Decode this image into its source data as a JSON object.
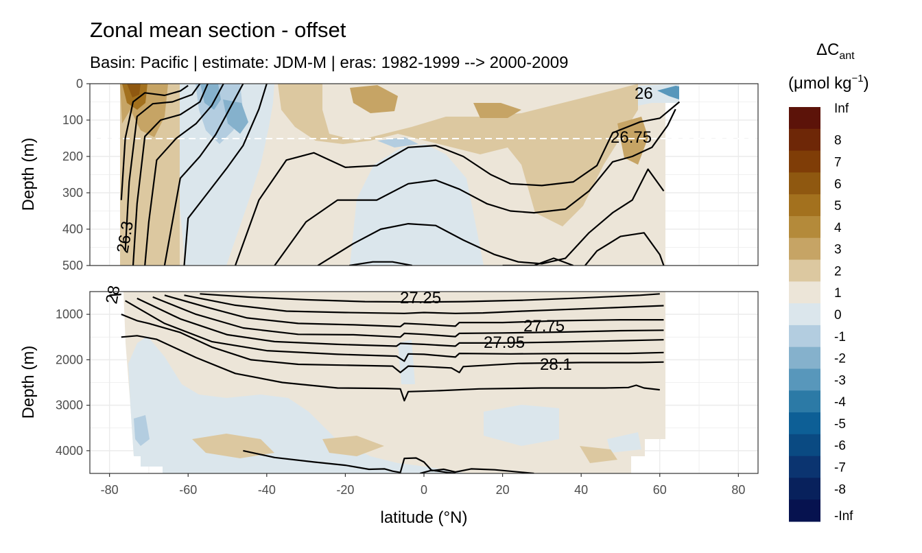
{
  "chart_data": {
    "type": "heatmap",
    "title": "Zonal mean section - offset",
    "subtitle": "Basin: Pacific | estimate: JDM-M | eras: 1982-1999 --> 2000-2009",
    "xlabel": "latitude (°N)",
    "ylabel": "Depth (m)",
    "xlim": [
      -85,
      85
    ],
    "x_ticks": [
      "-80",
      "-60",
      "-40",
      "-20",
      "0",
      "20",
      "40",
      "60",
      "80"
    ],
    "grid": true,
    "legend_position": "right",
    "panels": [
      {
        "name": "upper",
        "ylim": [
          500,
          0
        ],
        "y_ticks": [
          "0",
          "100",
          "200",
          "300",
          "400",
          "500"
        ]
      },
      {
        "name": "lower",
        "ylim": [
          4500,
          500
        ],
        "y_ticks": [
          "1000",
          "2000",
          "3000",
          "4000"
        ]
      }
    ],
    "reference_line_depth": 150,
    "legend": {
      "title_main": "ΔC",
      "title_sub": "ant",
      "unit_main": "(μmol kg",
      "unit_sup": "−1",
      "unit_close": ")",
      "bins": [
        {
          "label": "Inf",
          "color": "#5c1309"
        },
        {
          "label": "8",
          "color": "#6e2707"
        },
        {
          "label": "7",
          "color": "#7f3d07"
        },
        {
          "label": "6",
          "color": "#8f5810"
        },
        {
          "label": "5",
          "color": "#a3711e"
        },
        {
          "label": "4",
          "color": "#b48a3a"
        },
        {
          "label": "3",
          "color": "#c6a465"
        },
        {
          "label": "2",
          "color": "#dcc8a0"
        },
        {
          "label": "1",
          "color": "#ece5d8"
        },
        {
          "label": "0",
          "color": "#dbe6ec"
        },
        {
          "label": "-1",
          "color": "#b3cde0"
        },
        {
          "label": "-2",
          "color": "#85b1cc"
        },
        {
          "label": "-3",
          "color": "#5897bb"
        },
        {
          "label": "-4",
          "color": "#2c7aa6"
        },
        {
          "label": "-5",
          "color": "#0d5f96"
        },
        {
          "label": "-6",
          "color": "#0a4a82"
        },
        {
          "label": "-7",
          "color": "#0b3470"
        },
        {
          "label": "-8",
          "color": "#08215c"
        },
        {
          "label": "-Inf",
          "color": "#06124f"
        }
      ]
    },
    "isopycnal_labels": [
      "26",
      "26.75",
      "26.3",
      "27.25",
      "27.75",
      "27.95",
      "28.1",
      "28"
    ],
    "contours_upper": [
      [
        [
          -77,
          320
        ],
        [
          -76,
          150
        ],
        [
          -74,
          50
        ],
        [
          -71,
          25
        ],
        [
          -66,
          32
        ],
        [
          -62,
          20
        ],
        [
          -60,
          5
        ]
      ],
      [
        [
          -76,
          460
        ],
        [
          -75,
          270
        ],
        [
          -73,
          90
        ],
        [
          -69,
          55
        ],
        [
          -64,
          50
        ],
        [
          -59,
          30
        ],
        [
          -57,
          0
        ]
      ],
      [
        [
          -74,
          500
        ],
        [
          -73,
          330
        ],
        [
          -71,
          145
        ],
        [
          -67,
          100
        ],
        [
          -62,
          85
        ],
        [
          -57,
          50
        ],
        [
          -55,
          0
        ]
      ],
      [
        [
          -71,
          500
        ],
        [
          -70,
          380
        ],
        [
          -68,
          210
        ],
        [
          -63,
          150
        ],
        [
          -58,
          110
        ],
        [
          -54,
          60
        ],
        [
          -51,
          0
        ]
      ],
      [
        [
          -66,
          500
        ],
        [
          -65,
          440
        ],
        [
          -62,
          260
        ],
        [
          -57,
          200
        ],
        [
          -53,
          140
        ],
        [
          -49,
          60
        ],
        [
          -46,
          0
        ]
      ],
      [
        [
          -61,
          500
        ],
        [
          -60,
          370
        ],
        [
          -55,
          300
        ],
        [
          -50,
          230
        ],
        [
          -46,
          170
        ],
        [
          -42,
          70
        ],
        [
          -40,
          0
        ]
      ],
      [
        [
          -48,
          500
        ],
        [
          -42,
          320
        ],
        [
          -35,
          210
        ],
        [
          -28,
          190
        ],
        [
          -20,
          230
        ],
        [
          -12,
          225
        ],
        [
          -4,
          175
        ],
        [
          3,
          170
        ],
        [
          10,
          200
        ],
        [
          17,
          250
        ],
        [
          22,
          275
        ],
        [
          30,
          280
        ],
        [
          38,
          270
        ],
        [
          44,
          225
        ],
        [
          48,
          135
        ],
        [
          55,
          105
        ],
        [
          60,
          95
        ],
        [
          65,
          50
        ]
      ],
      [
        [
          -38,
          500
        ],
        [
          -30,
          380
        ],
        [
          -22,
          320
        ],
        [
          -12,
          320
        ],
        [
          -4,
          275
        ],
        [
          3,
          265
        ],
        [
          9,
          290
        ],
        [
          16,
          330
        ],
        [
          22,
          350
        ],
        [
          28,
          355
        ],
        [
          36,
          345
        ],
        [
          42,
          295
        ],
        [
          48,
          215
        ],
        [
          53,
          200
        ],
        [
          58,
          175
        ],
        [
          62,
          115
        ],
        [
          64,
          70
        ]
      ],
      [
        [
          -27,
          500
        ],
        [
          -18,
          440
        ],
        [
          -11,
          400
        ],
        [
          -4,
          385
        ],
        [
          3,
          390
        ],
        [
          10,
          430
        ],
        [
          18,
          470
        ],
        [
          24,
          490
        ],
        [
          30,
          495
        ],
        [
          36,
          480
        ],
        [
          42,
          410
        ],
        [
          48,
          355
        ],
        [
          53,
          320
        ],
        [
          57,
          235
        ],
        [
          61,
          295
        ]
      ],
      [
        [
          -19,
          500
        ],
        [
          -13,
          490
        ],
        [
          -8,
          490
        ],
        [
          -3,
          500
        ]
      ],
      [
        [
          20,
          500
        ],
        [
          28,
          500
        ],
        [
          33,
          480
        ],
        [
          38,
          500
        ]
      ],
      [
        [
          41,
          500
        ],
        [
          44,
          460
        ],
        [
          50,
          420
        ],
        [
          56,
          410
        ],
        [
          60,
          470
        ],
        [
          61,
          500
        ]
      ]
    ],
    "contours_lower": [
      [
        [
          -80,
          580
        ],
        [
          -78,
          570
        ],
        [
          -77,
          560
        ]
      ],
      [
        [
          -57,
          550
        ],
        [
          -45,
          620
        ],
        [
          -30,
          680
        ],
        [
          -15,
          720
        ],
        [
          0,
          730
        ],
        [
          10,
          720
        ],
        [
          25,
          690
        ],
        [
          40,
          640
        ],
        [
          55,
          580
        ],
        [
          60,
          550
        ]
      ],
      [
        [
          -61,
          580
        ],
        [
          -48,
          800
        ],
        [
          -35,
          930
        ],
        [
          -20,
          960
        ],
        [
          -5,
          980
        ],
        [
          0,
          960
        ],
        [
          8,
          980
        ],
        [
          15,
          970
        ],
        [
          25,
          930
        ],
        [
          40,
          880
        ],
        [
          55,
          830
        ],
        [
          61,
          810
        ]
      ],
      [
        [
          -66,
          580
        ],
        [
          -55,
          850
        ],
        [
          -45,
          1080
        ],
        [
          -32,
          1200
        ],
        [
          -18,
          1230
        ],
        [
          -6,
          1270
        ],
        [
          -5,
          1200
        ],
        [
          0,
          1220
        ],
        [
          8,
          1260
        ],
        [
          9,
          1180
        ],
        [
          20,
          1180
        ],
        [
          35,
          1140
        ],
        [
          50,
          1120
        ],
        [
          61,
          1120
        ]
      ],
      [
        [
          -69,
          620
        ],
        [
          -58,
          1000
        ],
        [
          -46,
          1300
        ],
        [
          -32,
          1440
        ],
        [
          -18,
          1450
        ],
        [
          -6,
          1500
        ],
        [
          -5,
          1420
        ],
        [
          0,
          1440
        ],
        [
          8,
          1490
        ],
        [
          9,
          1420
        ],
        [
          20,
          1410
        ],
        [
          35,
          1390
        ],
        [
          50,
          1360
        ],
        [
          61,
          1350
        ]
      ],
      [
        [
          -73,
          650
        ],
        [
          -62,
          1100
        ],
        [
          -50,
          1450
        ],
        [
          -38,
          1600
        ],
        [
          -22,
          1660
        ],
        [
          -7,
          1700
        ],
        [
          -6,
          1640
        ],
        [
          0,
          1660
        ],
        [
          8,
          1700
        ],
        [
          9,
          1630
        ],
        [
          20,
          1630
        ],
        [
          35,
          1610
        ],
        [
          50,
          1580
        ],
        [
          61,
          1560
        ]
      ],
      [
        [
          -76,
          700
        ],
        [
          -66,
          1200
        ],
        [
          -54,
          1600
        ],
        [
          -40,
          1800
        ],
        [
          -22,
          1880
        ],
        [
          -7,
          1920
        ],
        [
          -5,
          2030
        ],
        [
          -4,
          1870
        ],
        [
          0,
          1880
        ],
        [
          8,
          1940
        ],
        [
          9,
          1860
        ],
        [
          22,
          1870
        ],
        [
          38,
          1860
        ],
        [
          52,
          1860
        ],
        [
          61,
          1840
        ]
      ],
      [
        [
          -77,
          1000
        ],
        [
          -73,
          1140
        ],
        [
          -70,
          1200
        ],
        [
          -62,
          1400
        ],
        [
          -54,
          1720
        ],
        [
          -44,
          2000
        ],
        [
          -32,
          2100
        ],
        [
          -20,
          2120
        ],
        [
          -8,
          2140
        ],
        [
          -6,
          2280
        ],
        [
          -4,
          2140
        ],
        [
          0,
          2150
        ],
        [
          7,
          2180
        ],
        [
          9,
          2280
        ],
        [
          10,
          2150
        ],
        [
          24,
          2080
        ],
        [
          40,
          2060
        ],
        [
          55,
          2060
        ],
        [
          61,
          2050
        ]
      ],
      [
        [
          -77,
          1500
        ],
        [
          -73,
          1470
        ],
        [
          -68,
          1550
        ],
        [
          -58,
          1950
        ],
        [
          -48,
          2300
        ],
        [
          -36,
          2500
        ],
        [
          -22,
          2620
        ],
        [
          -10,
          2630
        ],
        [
          -6,
          2640
        ],
        [
          -5,
          2900
        ],
        [
          -4,
          2700
        ],
        [
          4,
          2680
        ],
        [
          14,
          2640
        ],
        [
          30,
          2620
        ],
        [
          46,
          2620
        ],
        [
          52,
          2610
        ],
        [
          54,
          2560
        ],
        [
          56,
          2620
        ],
        [
          60,
          2660
        ]
      ],
      [
        [
          -46,
          4000
        ],
        [
          -38,
          4150
        ],
        [
          -28,
          4250
        ],
        [
          -20,
          4320
        ],
        [
          -14,
          4410
        ],
        [
          -10,
          4400
        ],
        [
          -8,
          4450
        ],
        [
          -6,
          4480
        ],
        [
          -5,
          4170
        ],
        [
          -2,
          4160
        ],
        [
          0,
          4250
        ],
        [
          2,
          4440
        ],
        [
          5,
          4410
        ],
        [
          8,
          4470
        ],
        [
          12,
          4400
        ],
        [
          18,
          4420
        ],
        [
          28,
          4500
        ]
      ],
      [
        [
          -1,
          4500
        ],
        [
          2,
          4430
        ],
        [
          6,
          4480
        ],
        [
          8,
          4500
        ]
      ]
    ]
  }
}
